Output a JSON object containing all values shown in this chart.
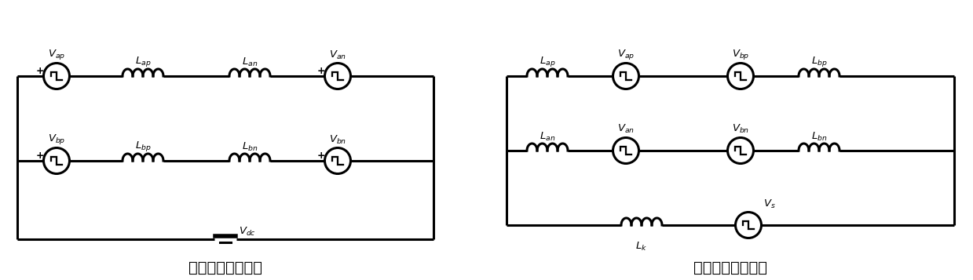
{
  "bg_color": "#ffffff",
  "line_color": "#000000",
  "line_width": 2.2,
  "caption_left": "共模电流等效回路",
  "caption_right": "差模电流等效回路",
  "font_size_caption": 14,
  "font_size_label": 9.5,
  "font_size_plus": 9
}
